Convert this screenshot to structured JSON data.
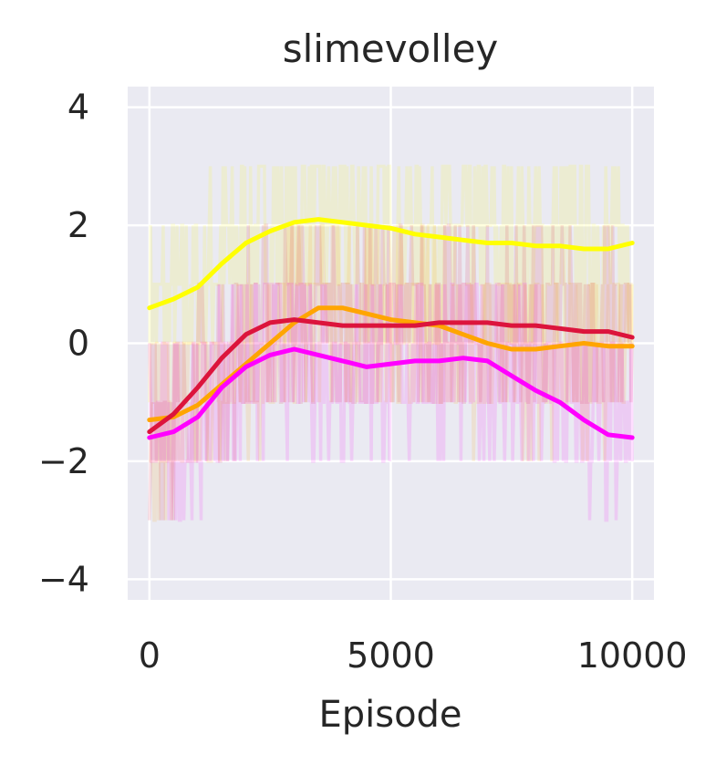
{
  "chart_data": {
    "type": "line",
    "title": "slimevolley",
    "xlabel": "Episode",
    "ylabel": "",
    "xlim": [
      -450,
      10450
    ],
    "ylim": [
      -4.35,
      4.35
    ],
    "xticks": [
      0,
      5000,
      10000
    ],
    "yticks": [
      4,
      2,
      0,
      -2,
      -4
    ],
    "xtick_labels": [
      "0",
      "5000",
      "10000"
    ],
    "ytick_labels": [
      "4",
      "2",
      "0",
      "−2",
      "−4"
    ],
    "grid": true,
    "background": "#eaeaf2",
    "legend": "none",
    "series": [
      {
        "color": "#ffff00",
        "smoothed": [
          [
            0,
            0.6
          ],
          [
            500,
            0.75
          ],
          [
            1000,
            0.95
          ],
          [
            1500,
            1.35
          ],
          [
            2000,
            1.7
          ],
          [
            2500,
            1.9
          ],
          [
            3000,
            2.05
          ],
          [
            3500,
            2.1
          ],
          [
            4000,
            2.05
          ],
          [
            4500,
            2.0
          ],
          [
            5000,
            1.95
          ],
          [
            5500,
            1.85
          ],
          [
            6000,
            1.8
          ],
          [
            6500,
            1.75
          ],
          [
            7000,
            1.7
          ],
          [
            7500,
            1.7
          ],
          [
            8000,
            1.65
          ],
          [
            8500,
            1.65
          ],
          [
            9000,
            1.6
          ],
          [
            9500,
            1.6
          ],
          [
            10000,
            1.7
          ]
        ],
        "raw_band": [
          -3,
          3
        ]
      },
      {
        "color": "#ffa500",
        "smoothed": [
          [
            0,
            -1.3
          ],
          [
            500,
            -1.25
          ],
          [
            1000,
            -1.05
          ],
          [
            1500,
            -0.7
          ],
          [
            2000,
            -0.35
          ],
          [
            2500,
            0.0
          ],
          [
            3000,
            0.35
          ],
          [
            3500,
            0.6
          ],
          [
            4000,
            0.6
          ],
          [
            4500,
            0.5
          ],
          [
            5000,
            0.4
          ],
          [
            5500,
            0.35
          ],
          [
            6000,
            0.3
          ],
          [
            6500,
            0.15
          ],
          [
            7000,
            0.0
          ],
          [
            7500,
            -0.1
          ],
          [
            8000,
            -0.1
          ],
          [
            8500,
            -0.05
          ],
          [
            9000,
            0.0
          ],
          [
            9500,
            -0.05
          ],
          [
            10000,
            -0.05
          ]
        ],
        "raw_band": [
          -3,
          2
        ]
      },
      {
        "color": "#dc143c",
        "smoothed": [
          [
            0,
            -1.5
          ],
          [
            500,
            -1.2
          ],
          [
            1000,
            -0.75
          ],
          [
            1500,
            -0.25
          ],
          [
            2000,
            0.15
          ],
          [
            2500,
            0.35
          ],
          [
            3000,
            0.4
          ],
          [
            3500,
            0.35
          ],
          [
            4000,
            0.3
          ],
          [
            4500,
            0.3
          ],
          [
            5000,
            0.3
          ],
          [
            5500,
            0.3
          ],
          [
            6000,
            0.35
          ],
          [
            6500,
            0.35
          ],
          [
            7000,
            0.35
          ],
          [
            7500,
            0.3
          ],
          [
            8000,
            0.3
          ],
          [
            8500,
            0.25
          ],
          [
            9000,
            0.2
          ],
          [
            9500,
            0.2
          ],
          [
            10000,
            0.1
          ]
        ],
        "raw_band": [
          -4,
          2
        ]
      },
      {
        "color": "#ff00ff",
        "smoothed": [
          [
            0,
            -1.6
          ],
          [
            500,
            -1.5
          ],
          [
            1000,
            -1.25
          ],
          [
            1500,
            -0.75
          ],
          [
            2000,
            -0.4
          ],
          [
            2500,
            -0.2
          ],
          [
            3000,
            -0.1
          ],
          [
            3500,
            -0.2
          ],
          [
            4000,
            -0.3
          ],
          [
            4500,
            -0.4
          ],
          [
            5000,
            -0.35
          ],
          [
            5500,
            -0.3
          ],
          [
            6000,
            -0.3
          ],
          [
            6500,
            -0.25
          ],
          [
            7000,
            -0.3
          ],
          [
            7500,
            -0.55
          ],
          [
            8000,
            -0.8
          ],
          [
            8500,
            -1.0
          ],
          [
            9000,
            -1.3
          ],
          [
            9500,
            -1.55
          ],
          [
            10000,
            -1.6
          ]
        ],
        "raw_band": [
          -3,
          1
        ]
      }
    ]
  }
}
